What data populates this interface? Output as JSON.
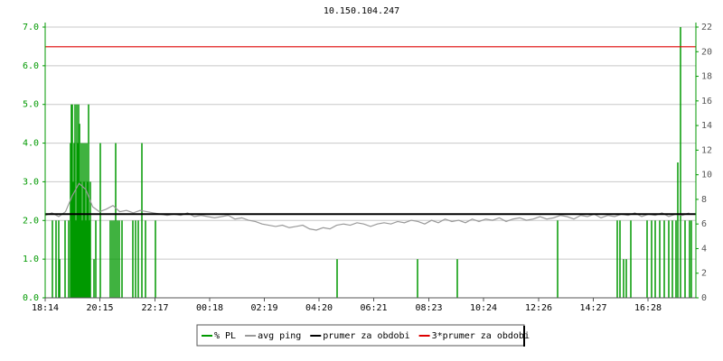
{
  "chart_data": {
    "type": "line",
    "title": "10.150.104.247",
    "xlim": [
      0,
      1440
    ],
    "xticks": [
      {
        "value": 0,
        "label": "18:14"
      },
      {
        "value": 121,
        "label": "20:15"
      },
      {
        "value": 243,
        "label": "22:17"
      },
      {
        "value": 364,
        "label": "00:18"
      },
      {
        "value": 485,
        "label": "02:19"
      },
      {
        "value": 606,
        "label": "04:20"
      },
      {
        "value": 727,
        "label": "06:21"
      },
      {
        "value": 849,
        "label": "08:23"
      },
      {
        "value": 970,
        "label": "10:24"
      },
      {
        "value": 1092,
        "label": "12:26"
      },
      {
        "value": 1213,
        "label": "14:27"
      },
      {
        "value": 1334,
        "label": "16:28"
      }
    ],
    "ylim": [
      0,
      7
    ],
    "yticks": [
      {
        "value": 0,
        "label": "0.0"
      },
      {
        "value": 1,
        "label": "1.0"
      },
      {
        "value": 2,
        "label": "2.0"
      },
      {
        "value": 3,
        "label": "3.0"
      },
      {
        "value": 4,
        "label": "4.0"
      },
      {
        "value": 5,
        "label": "5.0"
      },
      {
        "value": 6,
        "label": "6.0"
      },
      {
        "value": 7,
        "label": "7.0"
      }
    ],
    "y2lim": [
      0,
      22
    ],
    "y2ticks": [
      0,
      2,
      4,
      6,
      8,
      10,
      12,
      14,
      16,
      18,
      20,
      22
    ],
    "grid": true,
    "series": [
      {
        "name": "% PL",
        "color": "#009900",
        "style": "bars",
        "axis": "y",
        "x": [
          16,
          24,
          30,
          32,
          44,
          52,
          56,
          58,
          60,
          62,
          64,
          66,
          68,
          70,
          72,
          74,
          76,
          78,
          80,
          82,
          84,
          86,
          88,
          90,
          92,
          94,
          96,
          98,
          100,
          108,
          112,
          122,
          144,
          148,
          152,
          156,
          160,
          164,
          170,
          194,
          200,
          206,
          214,
          222,
          244,
          646,
          824,
          912,
          1134,
          1266,
          1272,
          1280,
          1286,
          1296,
          1332,
          1342,
          1350,
          1360,
          1370,
          1380,
          1388,
          1396,
          1400,
          1406,
          1416,
          1426,
          1430
        ],
        "values": [
          2,
          2,
          2,
          1,
          2,
          2,
          4,
          5,
          5,
          3,
          4,
          5,
          2,
          5,
          4,
          5,
          4.5,
          3,
          4,
          2,
          4,
          3,
          4,
          2,
          4,
          3,
          5,
          2,
          3,
          1,
          2,
          4,
          2,
          2,
          2,
          4,
          2,
          2,
          2,
          2,
          2,
          2,
          4,
          2,
          2,
          1,
          1,
          1,
          2,
          2,
          2,
          1,
          1,
          2,
          2,
          2,
          2,
          2,
          2,
          2,
          2,
          2,
          3.5,
          7,
          2,
          2,
          2
        ]
      },
      {
        "name": "avg ping",
        "color": "#999999",
        "style": "line",
        "axis": "y2",
        "x": [
          0,
          15,
          30,
          45,
          60,
          75,
          90,
          105,
          120,
          135,
          150,
          165,
          180,
          195,
          210,
          225,
          240,
          255,
          270,
          285,
          300,
          315,
          330,
          345,
          360,
          375,
          390,
          405,
          420,
          435,
          450,
          465,
          480,
          495,
          510,
          525,
          540,
          555,
          570,
          585,
          600,
          615,
          630,
          645,
          660,
          675,
          690,
          705,
          720,
          735,
          750,
          765,
          780,
          795,
          810,
          825,
          840,
          855,
          870,
          885,
          900,
          915,
          930,
          945,
          960,
          975,
          990,
          1005,
          1020,
          1035,
          1050,
          1065,
          1080,
          1095,
          1110,
          1125,
          1140,
          1155,
          1170,
          1185,
          1200,
          1215,
          1230,
          1245,
          1260,
          1275,
          1290,
          1305,
          1320,
          1335,
          1350,
          1365,
          1380,
          1395,
          1410,
          1425
        ],
        "values": [
          6.7,
          6.9,
          6.6,
          7.0,
          8.3,
          9.3,
          8.8,
          7.4,
          7.0,
          7.2,
          7.5,
          7.0,
          7.1,
          6.9,
          7.1,
          7.0,
          6.9,
          6.8,
          6.7,
          6.8,
          6.7,
          6.9,
          6.6,
          6.7,
          6.6,
          6.5,
          6.6,
          6.7,
          6.4,
          6.5,
          6.3,
          6.2,
          6.0,
          5.9,
          5.8,
          5.9,
          5.7,
          5.8,
          5.9,
          5.6,
          5.5,
          5.7,
          5.6,
          5.9,
          6.0,
          5.9,
          6.1,
          6.0,
          5.8,
          6.0,
          6.1,
          6.0,
          6.2,
          6.1,
          6.3,
          6.2,
          6.0,
          6.3,
          6.1,
          6.4,
          6.2,
          6.3,
          6.1,
          6.4,
          6.2,
          6.4,
          6.3,
          6.5,
          6.2,
          6.4,
          6.5,
          6.3,
          6.4,
          6.6,
          6.4,
          6.5,
          6.7,
          6.6,
          6.4,
          6.7,
          6.6,
          6.8,
          6.5,
          6.7,
          6.6,
          6.8,
          6.7,
          6.9,
          6.6,
          6.8,
          6.7,
          6.9,
          6.6,
          6.8,
          6.7,
          6.9
        ]
      },
      {
        "name": "prumer za obdobi",
        "color": "#000000",
        "style": "hline",
        "axis": "y2",
        "values": [
          6.8
        ]
      },
      {
        "name": "3*prumer za obdobi",
        "color": "#dd0000",
        "style": "hline",
        "axis": "y2",
        "values": [
          20.4
        ]
      }
    ]
  }
}
